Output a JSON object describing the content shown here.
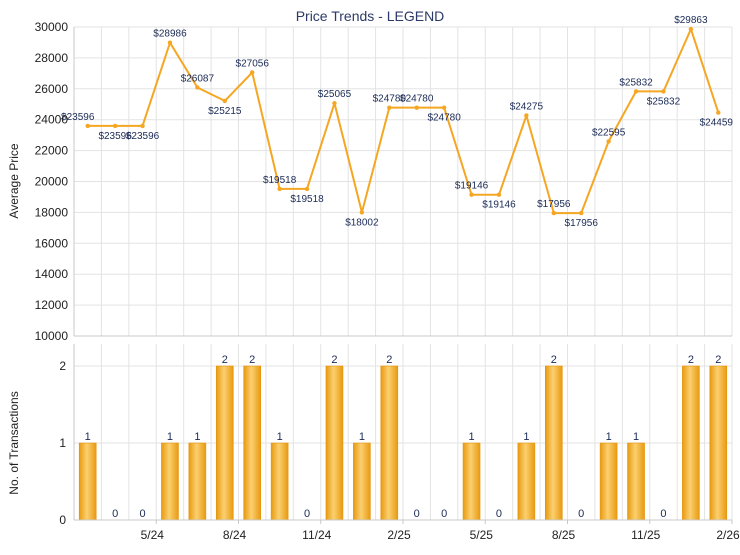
{
  "chart_data": [
    {
      "type": "line",
      "title": "Price Trends - LEGEND",
      "ylabel": "Average Price",
      "ylim": [
        10000,
        30000
      ],
      "yticks": [
        10000,
        12000,
        14000,
        16000,
        18000,
        20000,
        22000,
        24000,
        26000,
        28000,
        30000
      ],
      "grid": true,
      "series": [
        {
          "color": "#f5a623",
          "values": [
            23596,
            23596,
            23596,
            28986,
            26087,
            25215,
            27056,
            19518,
            19518,
            25065,
            18002,
            24780,
            24780,
            24780,
            19146,
            19146,
            24275,
            17956,
            17956,
            22595,
            25832,
            25832,
            29863,
            24459
          ],
          "labels": [
            "$23596",
            "$23596",
            "$23596",
            "$28986",
            "$26087",
            "$25215",
            "$27056",
            "$19518",
            "$19518",
            "$25065",
            "$18002",
            "$24780",
            "$24780",
            "$24780",
            "$19146",
            "$19146",
            "$24275",
            "$17956",
            "$17956",
            "$22595",
            "$25832",
            "$25832",
            "$29863",
            "$24459"
          ]
        }
      ]
    },
    {
      "type": "bar",
      "ylabel": "No. of Transactions",
      "ylim": [
        0,
        2
      ],
      "yticks": [
        0,
        1,
        2
      ],
      "grid": true,
      "bar_color": "#f5a623",
      "values": [
        1,
        0,
        0,
        1,
        1,
        2,
        2,
        1,
        0,
        2,
        1,
        2,
        0,
        0,
        1,
        0,
        1,
        2,
        0,
        1,
        1,
        0,
        2,
        2
      ],
      "xticks": [
        {
          "index": 2,
          "label": "5/24"
        },
        {
          "index": 5,
          "label": "8/24"
        },
        {
          "index": 8,
          "label": "11/24"
        },
        {
          "index": 11,
          "label": "2/25"
        },
        {
          "index": 14,
          "label": "5/25"
        },
        {
          "index": 17,
          "label": "8/25"
        },
        {
          "index": 20,
          "label": "11/25"
        },
        {
          "index": 23,
          "label": "2/26"
        }
      ]
    }
  ]
}
